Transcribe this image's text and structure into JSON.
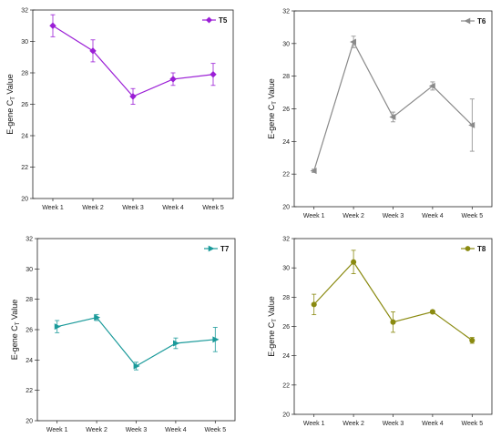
{
  "chart_data": [
    {
      "type": "line",
      "panel": "T5",
      "color": "#9b1fd6",
      "marker": "diamond",
      "categories": [
        "Week 1",
        "Week 2",
        "Week 3",
        "Week 4",
        "Week 5"
      ],
      "series": [
        {
          "name": "T5",
          "values": [
            31.0,
            29.4,
            26.5,
            27.6,
            27.9
          ],
          "error": [
            0.7,
            0.7,
            0.5,
            0.4,
            0.7
          ]
        }
      ],
      "ylabel": "E-gene C",
      "ylabel_sub": "T",
      "ylabel_suffix": " Value",
      "ylim": [
        20,
        32
      ],
      "yticks": [
        20,
        22,
        24,
        26,
        28,
        30,
        32
      ],
      "legend_position": "top-right",
      "grid": false
    },
    {
      "type": "line",
      "panel": "T6",
      "color": "#8a8a8a",
      "marker": "triangle-left",
      "categories": [
        "Week 1",
        "Week 2",
        "Week 3",
        "Week 4",
        "Week 5"
      ],
      "series": [
        {
          "name": "T6",
          "values": [
            22.2,
            30.1,
            25.5,
            27.4,
            25.0
          ],
          "error": [
            0.1,
            0.35,
            0.3,
            0.25,
            1.6
          ]
        }
      ],
      "ylabel": "E-gene C",
      "ylabel_sub": "T",
      "ylabel_suffix": " Value",
      "ylim": [
        20,
        32
      ],
      "yticks": [
        20,
        22,
        24,
        26,
        28,
        30,
        32
      ],
      "legend_position": "top-right",
      "grid": false
    },
    {
      "type": "line",
      "panel": "T7",
      "color": "#1a9a9a",
      "marker": "triangle-right",
      "categories": [
        "Week 1",
        "Week 2",
        "Week 3",
        "Week 4",
        "Week 5"
      ],
      "series": [
        {
          "name": "T7",
          "values": [
            26.2,
            26.8,
            23.6,
            25.1,
            25.35
          ],
          "error": [
            0.4,
            0.2,
            0.25,
            0.35,
            0.8
          ]
        }
      ],
      "ylabel": "E-gene C",
      "ylabel_sub": "T",
      "ylabel_suffix": " Value",
      "ylim": [
        20,
        32
      ],
      "yticks": [
        20,
        22,
        24,
        26,
        28,
        30,
        32
      ],
      "legend_position": "top-right",
      "grid": false
    },
    {
      "type": "line",
      "panel": "T8",
      "color": "#8a8a10",
      "marker": "circle",
      "categories": [
        "Week 1",
        "Week 2",
        "Week 3",
        "Week 4",
        "Week 5"
      ],
      "series": [
        {
          "name": "T8",
          "values": [
            27.5,
            30.4,
            26.3,
            27.0,
            25.05
          ],
          "error": [
            0.7,
            0.8,
            0.7,
            0.1,
            0.2
          ]
        }
      ],
      "ylabel": "E-gene C",
      "ylabel_sub": "T",
      "ylabel_suffix": " Value",
      "ylim": [
        20,
        32
      ],
      "yticks": [
        20,
        22,
        24,
        26,
        28,
        30,
        32
      ],
      "legend_position": "top-right",
      "grid": false
    }
  ]
}
